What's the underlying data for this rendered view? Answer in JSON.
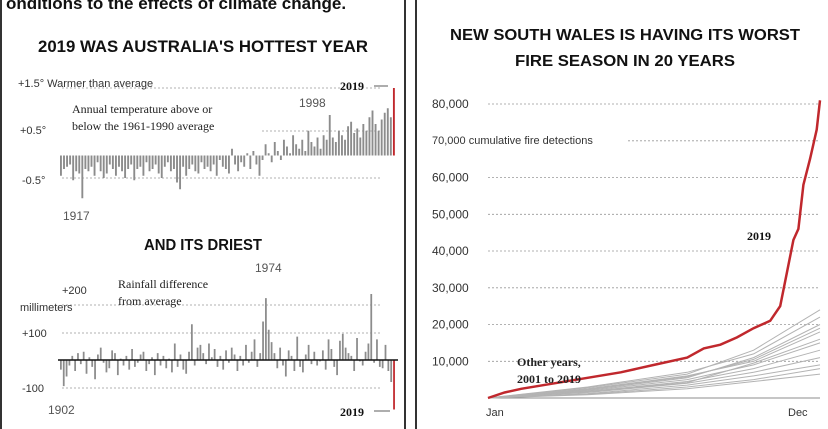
{
  "page": {
    "top_line": "onditions to the effects of climate change."
  },
  "chart_data": [
    {
      "type": "bar",
      "title": "2019 WAS AUSTRALIA'S HOTTEST YEAR",
      "annotation": "Annual temperature above or below the 1961-1990 average",
      "ytick_labels": [
        "+1.5° Warmer than average",
        "+0.5°",
        "-0.5°"
      ],
      "ylim": [
        -1.1,
        1.6
      ],
      "x_start": 1910,
      "x_end": 2019,
      "highlight_year": "2019",
      "labels": {
        "y1998": "1998",
        "y1917": "1917",
        "y2019": "2019"
      },
      "values": [
        -0.45,
        -0.3,
        -0.25,
        -0.2,
        -0.55,
        -0.35,
        -0.4,
        -0.95,
        -0.3,
        -0.35,
        -0.25,
        -0.45,
        -0.15,
        -0.35,
        -0.5,
        -0.4,
        -0.2,
        -0.3,
        -0.45,
        -0.25,
        -0.35,
        -0.5,
        -0.3,
        -0.2,
        -0.55,
        -0.3,
        -0.25,
        -0.45,
        -0.15,
        -0.35,
        -0.3,
        -0.2,
        -0.4,
        -0.5,
        -0.25,
        -0.15,
        -0.35,
        -0.3,
        -0.6,
        -0.75,
        -0.25,
        -0.45,
        -0.3,
        -0.2,
        -0.35,
        -0.4,
        -0.15,
        -0.3,
        -0.25,
        -0.35,
        -0.2,
        -0.45,
        -0.1,
        -0.25,
        -0.3,
        -0.4,
        0.15,
        -0.2,
        -0.35,
        -0.15,
        -0.25,
        0.05,
        -0.3,
        0.1,
        -0.2,
        -0.45,
        -0.1,
        0.25,
        0.05,
        -0.15,
        0.3,
        0.1,
        -0.1,
        0.35,
        0.2,
        0.05,
        0.45,
        0.25,
        0.15,
        0.35,
        0.1,
        0.55,
        0.3,
        0.2,
        0.4,
        0.15,
        0.45,
        0.35,
        0.9,
        0.4,
        0.3,
        0.55,
        0.45,
        0.35,
        0.65,
        0.75,
        0.5,
        0.6,
        0.4,
        0.7,
        0.55,
        0.85,
        1.0,
        0.7,
        0.55,
        0.8,
        0.95,
        1.05,
        0.85,
        1.5
      ]
    },
    {
      "type": "bar",
      "title": "AND ITS DRIEST",
      "annotation": "Rainfall difference from average",
      "ytick_labels": [
        "+200 millimeters",
        "+100",
        "-100"
      ],
      "ylim": [
        -200,
        310
      ],
      "x_start": 1902,
      "x_end": 2019,
      "highlight_year": "2019",
      "labels": {
        "y1974": "1974",
        "y1902": "1902",
        "y2019": "2019"
      },
      "values": [
        -35,
        -95,
        -60,
        -20,
        15,
        -40,
        25,
        -15,
        30,
        -50,
        10,
        -25,
        -70,
        20,
        45,
        -10,
        -45,
        -30,
        35,
        25,
        -55,
        5,
        -20,
        15,
        -35,
        40,
        -25,
        -10,
        20,
        30,
        -40,
        -15,
        10,
        -55,
        25,
        -20,
        15,
        -30,
        5,
        -45,
        60,
        -25,
        20,
        -35,
        -50,
        30,
        130,
        -20,
        45,
        55,
        25,
        -15,
        60,
        10,
        40,
        -25,
        15,
        -35,
        35,
        -10,
        45,
        20,
        -40,
        15,
        -20,
        55,
        -10,
        30,
        75,
        -25,
        25,
        140,
        225,
        110,
        65,
        25,
        -30,
        45,
        -20,
        -60,
        35,
        15,
        -40,
        85,
        -25,
        -45,
        20,
        55,
        -15,
        30,
        -20,
        -5,
        35,
        -35,
        75,
        40,
        -25,
        -55,
        70,
        95,
        45,
        25,
        15,
        -40,
        80,
        -5,
        -20,
        30,
        60,
        240,
        -10,
        75,
        -25,
        -30,
        55,
        -40,
        -80,
        -180
      ]
    },
    {
      "type": "line",
      "title": "NEW SOUTH WALES IS HAVING ITS WORST FIRE SEASON IN 20 YEARS",
      "annotation": "70,000 cumulative fire detections",
      "ylabels": [
        "80,000",
        "70,000",
        "60,000",
        "50,000",
        "40,000",
        "30,000",
        "20,000",
        "10,000"
      ],
      "ylim": [
        0,
        82000
      ],
      "xlabels": [
        "Jan",
        "Dec"
      ],
      "xlim": [
        0,
        1
      ],
      "series": [
        {
          "name": "2019",
          "color": "#c0282d",
          "x": [
            0,
            0.05,
            0.1,
            0.2,
            0.3,
            0.4,
            0.5,
            0.6,
            0.65,
            0.7,
            0.75,
            0.8,
            0.85,
            0.88,
            0.9,
            0.92,
            0.935,
            0.95,
            0.97,
            0.99,
            1.0
          ],
          "y": [
            0,
            1500,
            2500,
            4000,
            5500,
            7000,
            9000,
            11000,
            13500,
            14500,
            16500,
            19000,
            21000,
            25000,
            34000,
            43000,
            46000,
            58000,
            65000,
            73000,
            81000
          ]
        },
        {
          "name": "Other years, 2001 to 2019",
          "color": "#aaaaaa",
          "curves": [
            {
              "x": [
                0,
                0.3,
                0.6,
                0.8,
                1.0
              ],
              "y": [
                0,
                3000,
                7000,
                12000,
                22000
              ]
            },
            {
              "x": [
                0,
                0.3,
                0.6,
                0.8,
                1.0
              ],
              "y": [
                0,
                2500,
                6000,
                10000,
                18000
              ]
            },
            {
              "x": [
                0,
                0.3,
                0.6,
                0.8,
                1.0
              ],
              "y": [
                0,
                2000,
                5000,
                9000,
                15000
              ]
            },
            {
              "x": [
                0,
                0.3,
                0.6,
                0.8,
                1.0
              ],
              "y": [
                0,
                1800,
                4500,
                8000,
                13000
              ]
            },
            {
              "x": [
                0,
                0.3,
                0.6,
                0.8,
                1.0
              ],
              "y": [
                0,
                1500,
                4000,
                7000,
                11000
              ]
            },
            {
              "x": [
                0,
                0.3,
                0.6,
                0.8,
                1.0
              ],
              "y": [
                0,
                2200,
                5500,
                11000,
                20000
              ]
            },
            {
              "x": [
                0,
                0.3,
                0.6,
                0.8,
                1.0
              ],
              "y": [
                0,
                1200,
                3500,
                6000,
                9000
              ]
            },
            {
              "x": [
                0,
                0.3,
                0.6,
                0.8,
                1.0
              ],
              "y": [
                0,
                1000,
                3000,
                5000,
                8000
              ]
            },
            {
              "x": [
                0,
                0.3,
                0.6,
                0.8,
                1.0
              ],
              "y": [
                0,
                2800,
                6500,
                13000,
                24000
              ]
            },
            {
              "x": [
                0,
                0.3,
                0.6,
                0.8,
                1.0
              ],
              "y": [
                0,
                1700,
                4200,
                9500,
                16000
              ]
            },
            {
              "x": [
                0,
                0.3,
                0.6,
                0.8,
                1.0
              ],
              "y": [
                0,
                900,
                2500,
                4500,
                6500
              ]
            },
            {
              "x": [
                0,
                0.3,
                0.6,
                0.8,
                1.0
              ],
              "y": [
                0,
                2400,
                5800,
                10500,
                19000
              ]
            }
          ]
        }
      ],
      "label_2019": "2019",
      "label_other_line1": "Other years,",
      "label_other_line2": "2001 to 2019"
    }
  ]
}
